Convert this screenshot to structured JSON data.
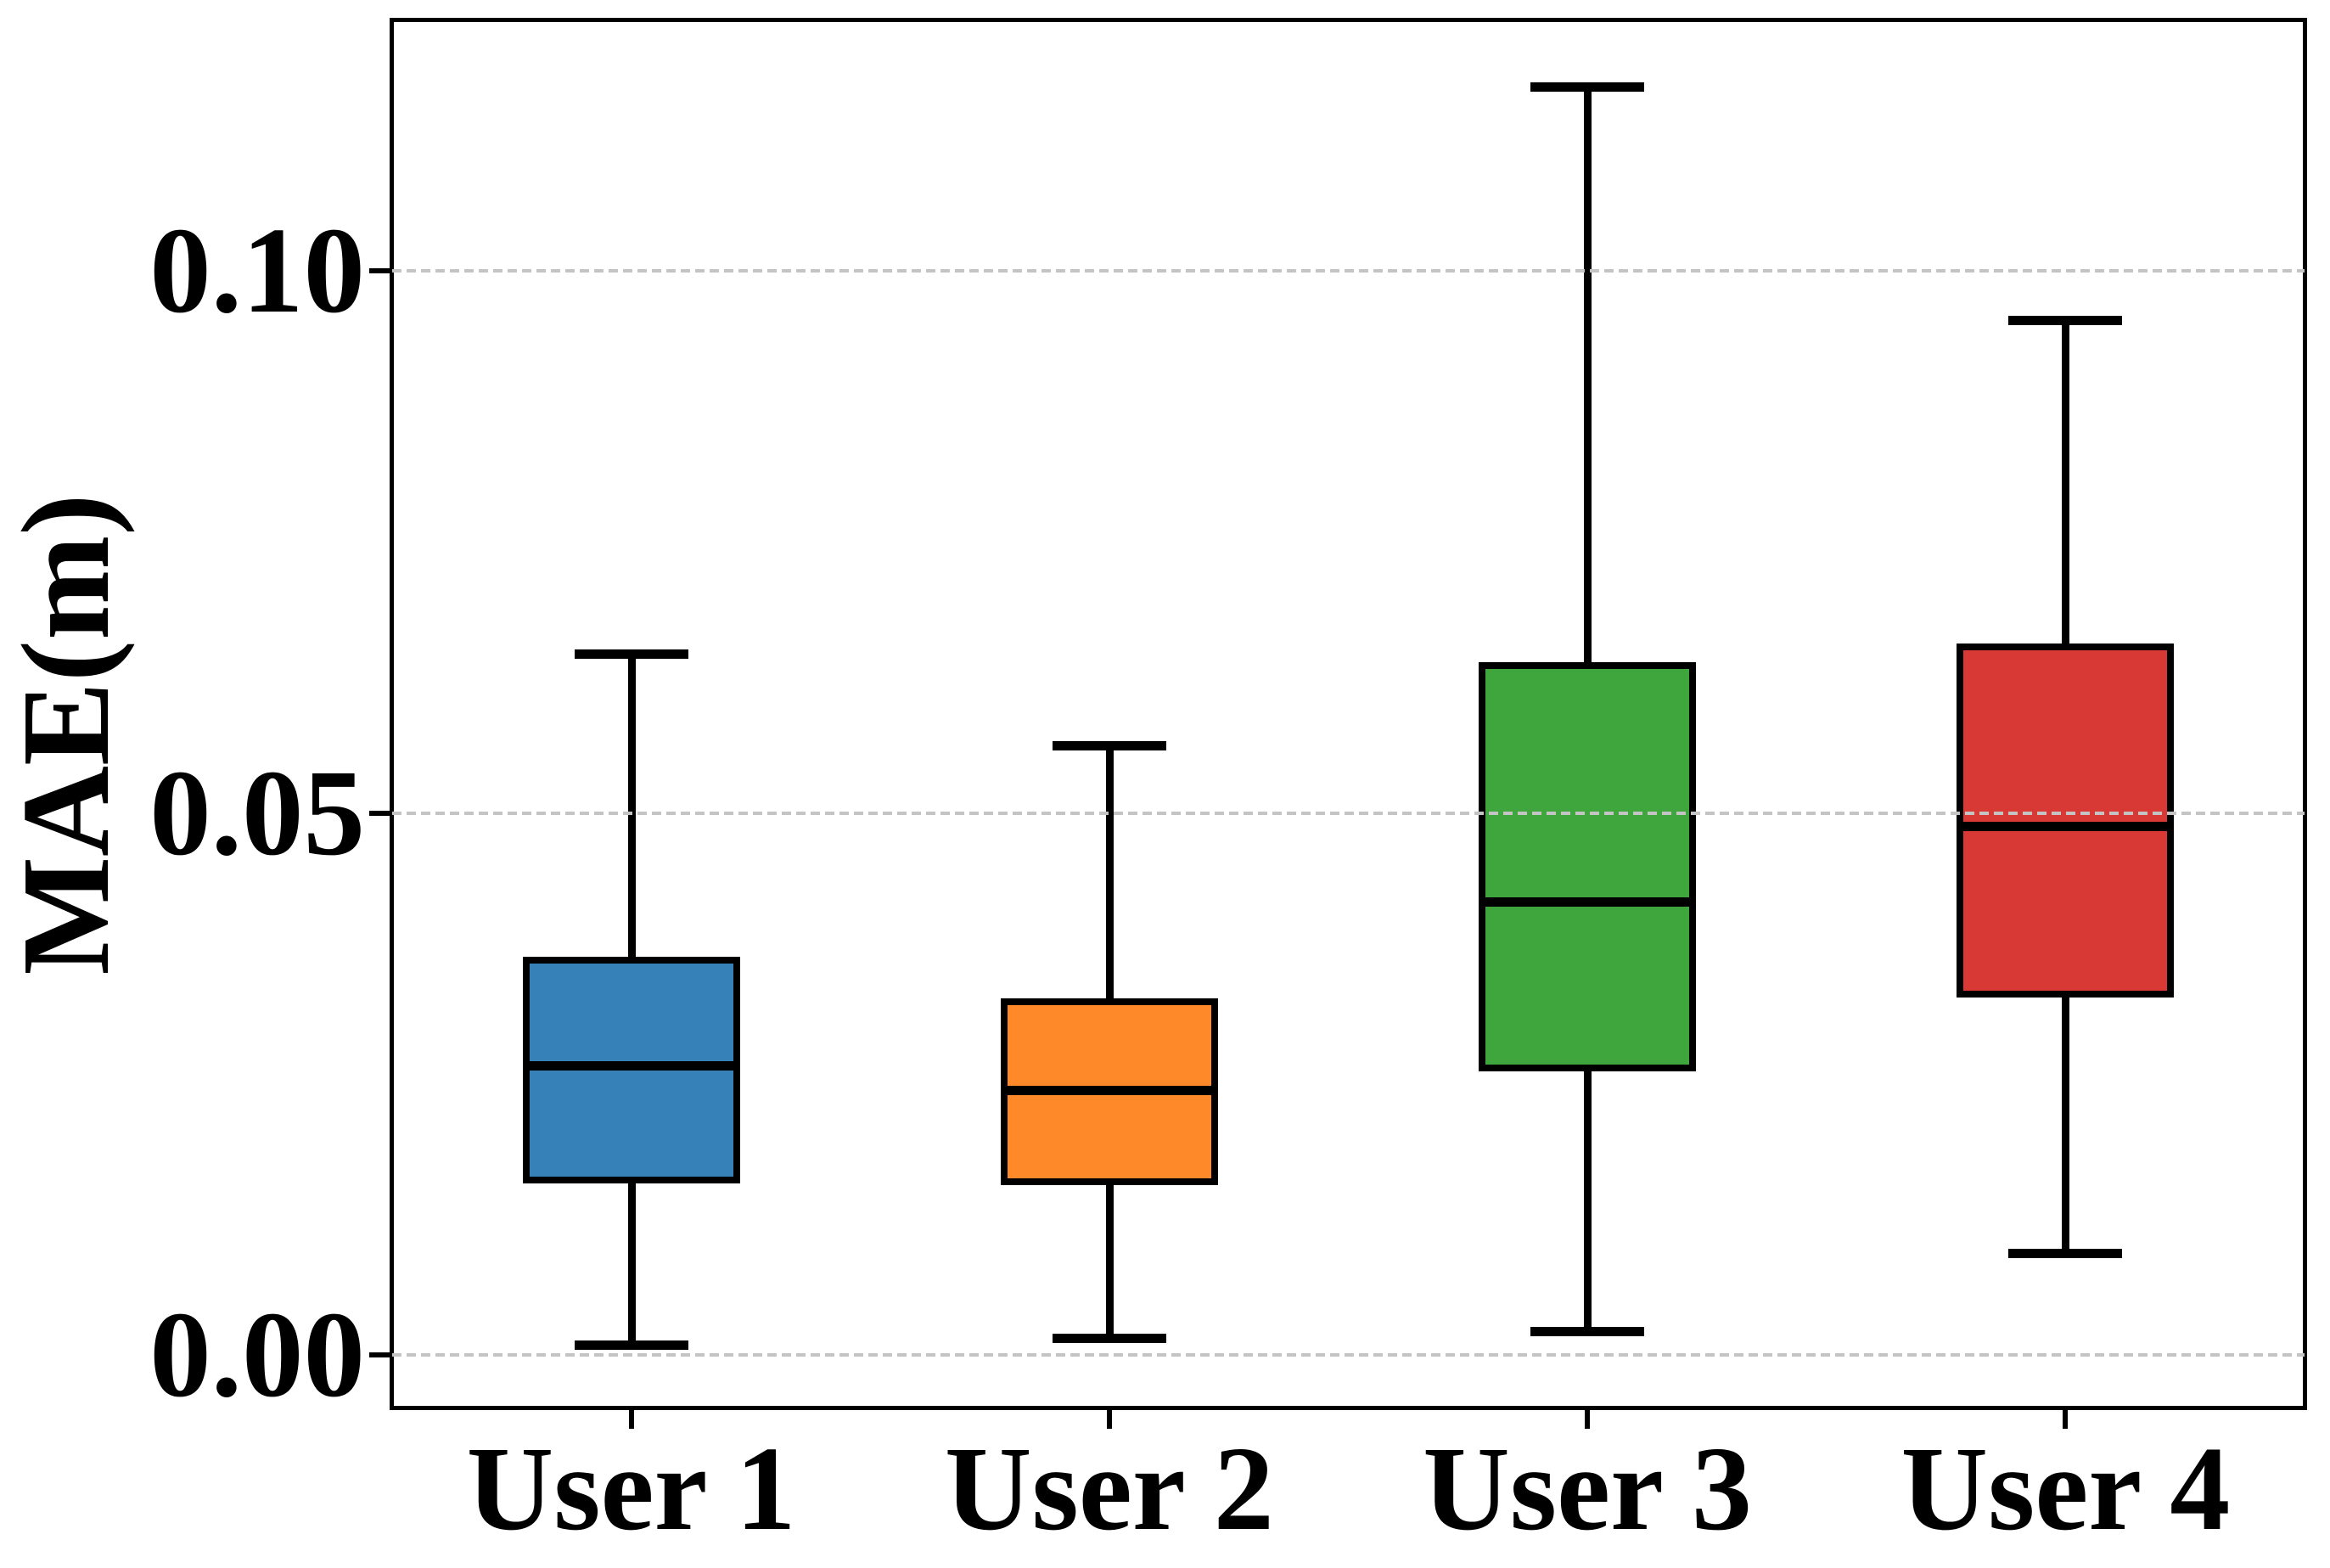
{
  "figure": {
    "background": "#ffffff",
    "axis_color": "#000000",
    "grid_color": "#c4c4c4"
  },
  "chart_data": {
    "type": "boxplot",
    "title": "",
    "xlabel": "",
    "ylabel": "MAE(m)",
    "categories": [
      "User 1",
      "User 2",
      "User 3",
      "User 4"
    ],
    "yticks": [
      "0.00",
      "0.05",
      "0.10"
    ],
    "ytick_values": [
      0.0,
      0.05,
      0.1
    ],
    "ylim": [
      -0.00486,
      0.12312
    ],
    "grid": "horizontal-dashed",
    "legend": "none",
    "series": [
      {
        "name": "User 1",
        "color": "#3581b8",
        "whisker_low": 0.0009,
        "q1": 0.0161,
        "median": 0.0267,
        "q3": 0.0364,
        "whisker_high": 0.0647
      },
      {
        "name": "User 2",
        "color": "#fd8928",
        "whisker_low": 0.0016,
        "q1": 0.016,
        "median": 0.0244,
        "q3": 0.0326,
        "whisker_high": 0.0562
      },
      {
        "name": "User 3",
        "color": "#3ea63c",
        "whisker_low": 0.0022,
        "q1": 0.0265,
        "median": 0.0418,
        "q3": 0.0636,
        "whisker_high": 0.117
      },
      {
        "name": "User 4",
        "color": "#d83934",
        "whisker_low": 0.0094,
        "q1": 0.0333,
        "median": 0.0488,
        "q3": 0.0653,
        "whisker_high": 0.0955
      }
    ]
  }
}
